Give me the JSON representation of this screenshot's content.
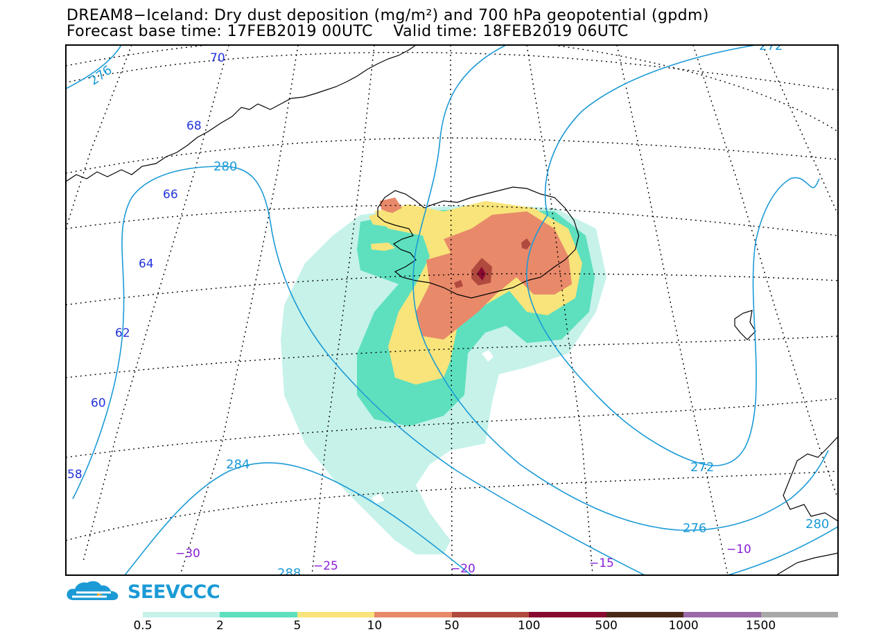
{
  "title_line1": "DREAM8−Iceland: Dry dust deposition (mg/m²) and 700 hPa geopotential (gpdm)",
  "title_line2": "Forecast base time: 17FEB2019 00UTC    Valid time: 18FEB2019 06UTC",
  "logo": {
    "text": "SEEVCCC",
    "icon": "cloud-logo-icon",
    "color": "#1b9ad6"
  },
  "contour_color": "#1b9ad6",
  "lat_label_color": "#2233dd",
  "lon_label_color": "#8a1fd6",
  "geopotential_labels": [
    "276",
    "280",
    "284",
    "288",
    "272",
    "276",
    "272",
    "280"
  ],
  "latitude_labels": [
    "70",
    "68",
    "66",
    "64",
    "62",
    "60",
    "58"
  ],
  "longitude_labels": [
    "−30",
    "−25",
    "−20",
    "−15",
    "−10"
  ],
  "deposition_levels": [
    {
      "label": "0.5",
      "color": "#c6f2ea"
    },
    {
      "label": "2",
      "color": "#5ee0be"
    },
    {
      "label": "5",
      "color": "#f8e47a"
    },
    {
      "label": "10",
      "color": "#e8896a"
    },
    {
      "label": "50",
      "color": "#b04a3e"
    },
    {
      "label": "100",
      "color": "#880a30"
    },
    {
      "label": "500",
      "color": "#4a2818"
    },
    {
      "label": "1000",
      "color": "#9a6aa8"
    },
    {
      "label": "1500",
      "color": "#a8a8a8"
    }
  ]
}
